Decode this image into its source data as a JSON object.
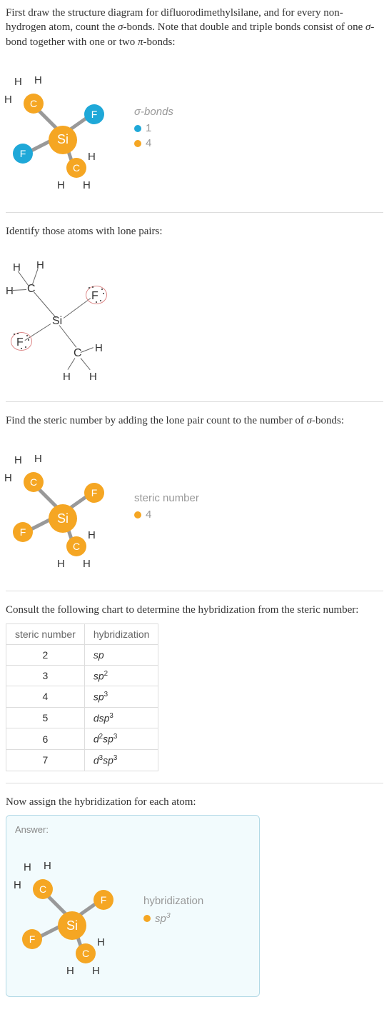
{
  "intro": {
    "text1": "First draw the structure diagram for difluorodimethylsilane, and for every non-hydrogen atom, count the ",
    "sigma": "σ",
    "text2": "-bonds.  Note that double and triple bonds consist of one ",
    "text3": "-bond together with one or two ",
    "pi": "π",
    "text4": "-bonds:"
  },
  "molecule": {
    "si": "Si",
    "c": "C",
    "f": "F",
    "h": "H",
    "colors": {
      "si": "#f5a623",
      "c": "#f5a623",
      "f": "#1fa8d8"
    }
  },
  "legend1": {
    "title": "σ-bonds",
    "items": [
      {
        "color": "#1fa8d8",
        "label": "1"
      },
      {
        "color": "#f5a623",
        "label": "4"
      }
    ]
  },
  "step2": "Identify those atoms with lone pairs:",
  "step3": {
    "text1": "Find the steric number by adding the lone pair count to the number of ",
    "sigma": "σ",
    "text2": "-bonds:"
  },
  "legend3": {
    "title": "steric number",
    "items": [
      {
        "color": "#f5a623",
        "label": "4"
      }
    ]
  },
  "step4": "Consult the following chart to determine the hybridization from the steric number:",
  "table": {
    "headers": [
      "steric number",
      "hybridization"
    ],
    "rows": [
      [
        "2",
        "sp"
      ],
      [
        "3",
        "sp2"
      ],
      [
        "4",
        "sp3"
      ],
      [
        "5",
        "dsp3"
      ],
      [
        "6",
        "d2sp3"
      ],
      [
        "7",
        "d3sp3"
      ]
    ]
  },
  "step5": "Now assign the hybridization for each atom:",
  "answer": {
    "label": "Answer:",
    "legend": {
      "title": "hybridization",
      "item_color": "#f5a623",
      "item_label": "sp3"
    }
  }
}
